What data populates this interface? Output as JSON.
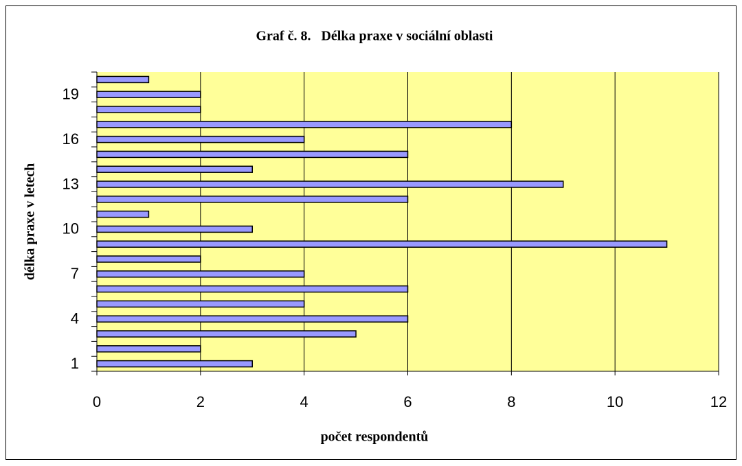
{
  "chart_data": {
    "type": "bar",
    "orientation": "horizontal",
    "title": "Graf č. 8.   Délka praxe v sociální oblasti",
    "x_label": "počet respondentů",
    "y_label": "délka praxe v letech",
    "categories": [
      "1",
      null,
      null,
      "4",
      null,
      null,
      "7",
      null,
      null,
      "10",
      null,
      null,
      "13",
      null,
      null,
      "16",
      null,
      null,
      "19",
      null
    ],
    "values": [
      3,
      2,
      5,
      6,
      4,
      6,
      4,
      2,
      11,
      3,
      1,
      6,
      9,
      3,
      6,
      4,
      8,
      2,
      2,
      1
    ],
    "color": "#9999ff",
    "xlim": [
      0,
      12
    ],
    "xticks": [
      0,
      2,
      4,
      6,
      8,
      10,
      12
    ],
    "grid": true
  }
}
